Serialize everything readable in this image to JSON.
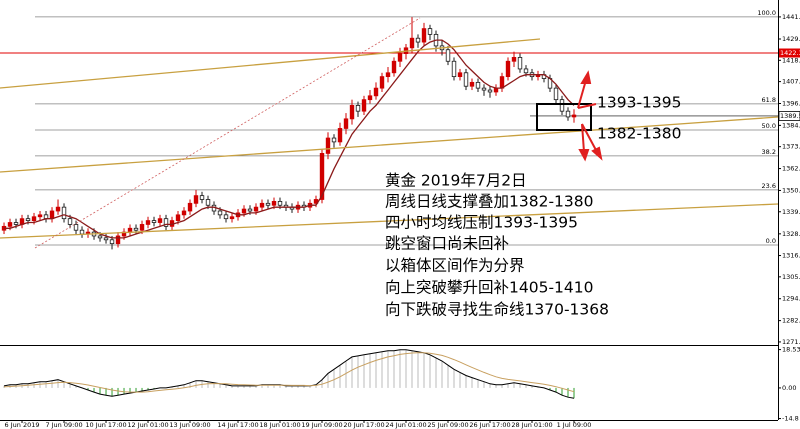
{
  "chart_data": {
    "type": "candlestick",
    "open": [
      1330,
      1332,
      1334,
      1333,
      1336,
      1335,
      1337,
      1338,
      1336,
      1340,
      1342,
      1336,
      1333,
      1330,
      1328,
      1329,
      1327,
      1326,
      1325,
      1323,
      1327,
      1329,
      1331,
      1330,
      1333,
      1335,
      1334,
      1336,
      1332,
      1335,
      1338,
      1340,
      1344,
      1348,
      1346,
      1343,
      1340,
      1338,
      1336,
      1337,
      1339,
      1341,
      1340,
      1342,
      1344,
      1343,
      1345,
      1343,
      1342,
      1341,
      1343,
      1342,
      1344,
      1346,
      1370,
      1378,
      1376,
      1383,
      1388,
      1395,
      1392,
      1398,
      1400,
      1404,
      1410,
      1412,
      1418,
      1422,
      1425,
      1430,
      1428,
      1435,
      1432,
      1426,
      1424,
      1418,
      1410,
      1412,
      1405,
      1407,
      1404,
      1403,
      1402,
      1404,
      1410,
      1418,
      1420,
      1414,
      1412,
      1410,
      1411,
      1409,
      1404,
      1398,
      1392,
      1389
    ],
    "high": [
      1334,
      1336,
      1336,
      1338,
      1338,
      1339,
      1340,
      1340,
      1342,
      1346,
      1344,
      1338,
      1335,
      1332,
      1331,
      1331,
      1329,
      1328,
      1327,
      1329,
      1331,
      1333,
      1333,
      1335,
      1337,
      1337,
      1338,
      1338,
      1337,
      1340,
      1342,
      1346,
      1351,
      1350,
      1348,
      1345,
      1342,
      1340,
      1339,
      1341,
      1343,
      1343,
      1344,
      1346,
      1346,
      1347,
      1347,
      1345,
      1344,
      1345,
      1345,
      1346,
      1348,
      1372,
      1381,
      1380,
      1386,
      1391,
      1398,
      1397,
      1400,
      1403,
      1407,
      1412,
      1415,
      1420,
      1425,
      1427,
      1441,
      1432,
      1438,
      1437,
      1434,
      1429,
      1426,
      1420,
      1414,
      1414,
      1409,
      1409,
      1406,
      1405,
      1406,
      1412,
      1420,
      1423,
      1422,
      1416,
      1414,
      1413,
      1413,
      1411,
      1406,
      1400,
      1394,
      1393
    ],
    "low": [
      1328,
      1330,
      1331,
      1331,
      1333,
      1333,
      1335,
      1334,
      1334,
      1338,
      1334,
      1331,
      1328,
      1326,
      1326,
      1325,
      1324,
      1323,
      1320,
      1321,
      1325,
      1327,
      1328,
      1328,
      1331,
      1332,
      1332,
      1330,
      1330,
      1333,
      1336,
      1338,
      1342,
      1344,
      1341,
      1338,
      1336,
      1334,
      1334,
      1335,
      1337,
      1338,
      1338,
      1340,
      1341,
      1341,
      1341,
      1340,
      1339,
      1339,
      1340,
      1340,
      1342,
      1344,
      1367,
      1373,
      1374,
      1380,
      1385,
      1389,
      1390,
      1396,
      1398,
      1402,
      1407,
      1410,
      1415,
      1419,
      1422,
      1425,
      1426,
      1429,
      1423,
      1421,
      1416,
      1408,
      1408,
      1403,
      1403,
      1402,
      1400,
      1399,
      1400,
      1402,
      1408,
      1415,
      1412,
      1410,
      1408,
      1408,
      1407,
      1402,
      1396,
      1390,
      1387,
      1386
    ],
    "close": [
      1332,
      1334,
      1333,
      1336,
      1335,
      1337,
      1338,
      1336,
      1340,
      1342,
      1336,
      1333,
      1330,
      1328,
      1329,
      1327,
      1326,
      1325,
      1323,
      1327,
      1329,
      1331,
      1330,
      1333,
      1335,
      1334,
      1336,
      1332,
      1335,
      1338,
      1340,
      1344,
      1348,
      1346,
      1343,
      1340,
      1338,
      1336,
      1337,
      1339,
      1341,
      1340,
      1342,
      1344,
      1343,
      1345,
      1343,
      1342,
      1341,
      1343,
      1342,
      1344,
      1346,
      1370,
      1378,
      1376,
      1383,
      1388,
      1395,
      1392,
      1398,
      1400,
      1404,
      1410,
      1412,
      1418,
      1422,
      1425,
      1430,
      1428,
      1435,
      1432,
      1426,
      1424,
      1418,
      1410,
      1412,
      1405,
      1407,
      1404,
      1403,
      1402,
      1404,
      1410,
      1418,
      1420,
      1414,
      1412,
      1410,
      1411,
      1409,
      1404,
      1398,
      1392,
      1389,
      1390
    ],
    "up_color": "#d00000",
    "down_color": "#1a1a1a",
    "ma": {
      "color": "#8b1a1a",
      "values": [
        1331,
        1331,
        1332,
        1333,
        1334,
        1334,
        1335,
        1336,
        1336,
        1337,
        1338,
        1337,
        1336,
        1334,
        1332,
        1330,
        1328,
        1327,
        1326,
        1326,
        1326,
        1327,
        1328,
        1329,
        1330,
        1331,
        1332,
        1333,
        1333,
        1334,
        1335,
        1337,
        1339,
        1341,
        1342,
        1342,
        1341,
        1340,
        1339,
        1338,
        1338,
        1339,
        1339,
        1340,
        1341,
        1342,
        1342,
        1342,
        1342,
        1342,
        1342,
        1343,
        1343,
        1348,
        1355,
        1362,
        1368,
        1374,
        1380,
        1384,
        1388,
        1392,
        1395,
        1399,
        1403,
        1407,
        1411,
        1415,
        1419,
        1423,
        1426,
        1428,
        1429,
        1429,
        1427,
        1424,
        1420,
        1416,
        1413,
        1410,
        1407,
        1405,
        1404,
        1404,
        1406,
        1408,
        1410,
        1411,
        1411,
        1411,
        1411,
        1409,
        1406,
        1402,
        1398,
        1395
      ]
    },
    "xlim": [
      -0.67,
      129
    ],
    "xticks": [
      {
        "value": 3,
        "label": "6 Jun 2019"
      },
      {
        "value": 10,
        "label": "7 Jun 09:00"
      },
      {
        "value": 17,
        "label": "10 Jun 17:00"
      },
      {
        "value": 24,
        "label": "12 Jun 01:00"
      },
      {
        "value": 31,
        "label": "13 Jun 09:00"
      },
      {
        "value": 39,
        "label": "14 Jun 17:00"
      },
      {
        "value": 46,
        "label": "18 Jun 01:00"
      },
      {
        "value": 53,
        "label": "19 Jun 09:00"
      },
      {
        "value": 60,
        "label": "20 Jun 17:00"
      },
      {
        "value": 67,
        "label": "24 Jun 01:00"
      },
      {
        "value": 74,
        "label": "25 Jun 09:00"
      },
      {
        "value": 81,
        "label": "26 Jun 17:00"
      },
      {
        "value": 88,
        "label": "28 Jun 01:00"
      },
      {
        "value": 95,
        "label": "1 Jul 09:00"
      }
    ],
    "ylim": [
      1270.2,
      1444.7
    ],
    "yticks": [
      1441.1,
      1429.6,
      1418.5,
      1407.4,
      {
        "value": 1396,
        "label": "1396.0"
      },
      1384.6,
      1373.5,
      1362.1,
      1350.7,
      1339.6,
      1328.1,
      1316.8,
      1305.7,
      1294.3,
      1282.9,
      1271.8
    ],
    "red_line": 1422.3,
    "current_price": 1389.5,
    "fib_levels": [
      {
        "ratio": {
          "value": 100,
          "label": "100.0"
        },
        "price": 1441.1
      },
      {
        "ratio": 61.8,
        "price": 1395.8
      },
      {
        "ratio": {
          "value": 50,
          "label": "50.0"
        },
        "price": 1382.2
      },
      {
        "ratio": 38.2,
        "price": 1368.7
      },
      {
        "ratio": 23.6,
        "price": 1351.0
      },
      {
        "ratio": {
          "value": 0,
          "label": "0.0"
        },
        "price": 1322.3
      }
    ],
    "annotations": [
      "黄金 2019年7月2日",
      "周线日线支撑叠加1382-1380",
      "四小时均线压制1393-1395",
      "跳空窗口尚未回补",
      "以箱体区间作为分界",
      "向上突破攀升回补1405-1410",
      "向下跌破寻找生命线1370-1368"
    ],
    "box_labels": [
      "1393-1395",
      "1382-1380"
    ],
    "macd": {
      "ylim": [
        -15.5,
        19.3
      ],
      "yticks": [
        18.532,
        {
          "value": 0,
          "label": "0.00"
        },
        -14.8
      ],
      "line": {
        "color": "#000000",
        "values": [
          1,
          1.5,
          1.5,
          2,
          2,
          2.5,
          3,
          3,
          3.5,
          4,
          3,
          2,
          1,
          0,
          -1,
          -2,
          -3,
          -3.5,
          -4,
          -3.5,
          -3,
          -2.5,
          -2,
          -1.5,
          -1,
          -0.5,
          0,
          0,
          0.5,
          1,
          1.5,
          2.5,
          3.5,
          3.5,
          3,
          2.5,
          2,
          1.5,
          1,
          1,
          1,
          1,
          1,
          1.5,
          1.5,
          1.5,
          1.5,
          1,
          1,
          1,
          1,
          1,
          1.5,
          4,
          7,
          9,
          11,
          13,
          15,
          15.5,
          16,
          16.5,
          17,
          17.5,
          18,
          18,
          18.5,
          18.5,
          18,
          17.5,
          17,
          16,
          14.5,
          13,
          11,
          9,
          7.5,
          6,
          5,
          4,
          3,
          2,
          1.5,
          1.5,
          2,
          2.5,
          2,
          1.5,
          1,
          0.5,
          0,
          -1,
          -2,
          -3.5,
          -4.5,
          -5
        ]
      },
      "signal": {
        "color": "#c8a060",
        "values": [
          0.5,
          0.7,
          0.9,
          1.1,
          1.3,
          1.5,
          1.8,
          2,
          2.3,
          2.6,
          2.7,
          2.6,
          2.3,
          1.9,
          1.4,
          0.8,
          0.2,
          -0.4,
          -1,
          -1.5,
          -1.8,
          -2,
          -2,
          -2,
          -1.8,
          -1.5,
          -1.2,
          -0.9,
          -0.6,
          -0.3,
          0.1,
          0.6,
          1.2,
          1.7,
          2,
          2.1,
          2.1,
          2,
          1.8,
          1.6,
          1.5,
          1.4,
          1.3,
          1.3,
          1.3,
          1.3,
          1.3,
          1.3,
          1.2,
          1.2,
          1.2,
          1.1,
          1.2,
          1.8,
          2.8,
          4,
          5.4,
          7,
          8.6,
          10,
          11.2,
          12.3,
          13.3,
          14.2,
          15,
          15.6,
          16.2,
          16.6,
          16.9,
          17,
          17,
          16.8,
          16.3,
          15.7,
          14.8,
          13.7,
          12.5,
          11.2,
          9.9,
          8.7,
          7.5,
          6.4,
          5.4,
          4.6,
          4.1,
          3.8,
          3.4,
          3,
          2.6,
          2.2,
          1.8,
          1.2,
          0.6,
          -0.2,
          -1,
          -1.8
        ]
      }
    }
  }
}
